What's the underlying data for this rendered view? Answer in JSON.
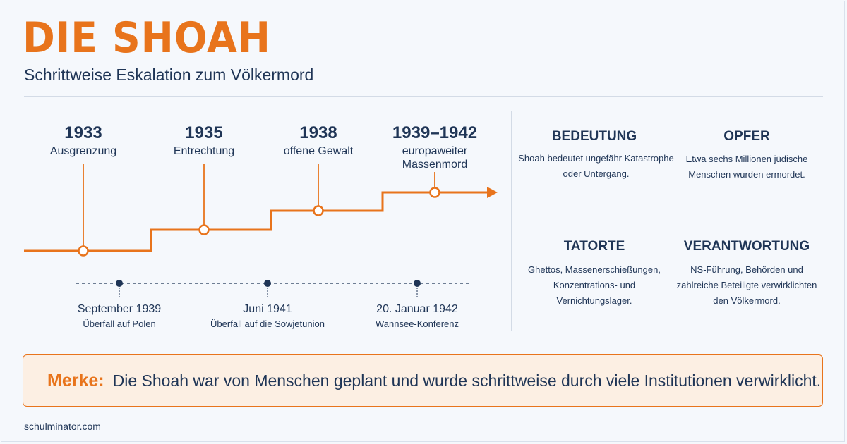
{
  "header": {
    "title": "DIE SHOAH",
    "subtitle": "Schrittweise Eskalation zum Völkermord"
  },
  "timeline": {
    "steps": [
      {
        "year": "1933",
        "label": "Ausgrenzung"
      },
      {
        "year": "1935",
        "label": "Entrechtung"
      },
      {
        "year": "1938",
        "label": "offene Gewalt"
      },
      {
        "year": "1939–1942",
        "label": "europaweiter Massenmord"
      }
    ],
    "events": [
      {
        "date": "September 1939",
        "desc": "Überfall auf Polen"
      },
      {
        "date": "Juni 1941",
        "desc": "Überfall auf die Sowjetunion"
      },
      {
        "date": "20. Januar 1942",
        "desc": "Wannsee-Konferenz"
      }
    ]
  },
  "cards": [
    {
      "title": "BEDEUTUNG",
      "text": "Shoah bedeutet ungefähr Katastrophe oder Untergang."
    },
    {
      "title": "OPFER",
      "text": "Etwa sechs Millionen jüdische Menschen wurden ermordet."
    },
    {
      "title": "TATORTE",
      "text": "Ghettos, Massenerschießungen, Konzentrations- und Vernichtungslager."
    },
    {
      "title": "VERANTWORTUNG",
      "text": "NS-Führung, Behörden und zahlreiche Beteiligte verwirklichten den Völkermord."
    }
  ],
  "merke": {
    "label": "Merke:",
    "text": "Die Shoah war von Menschen geplant und wurde schrittweise durch viele Institutionen verwirklicht."
  },
  "footer": {
    "source": "schulminator.com"
  },
  "colors": {
    "accent": "#e8741c",
    "navy": "#1f3556",
    "background": "#f5f8fc",
    "merke_background": "#fcefe3"
  }
}
